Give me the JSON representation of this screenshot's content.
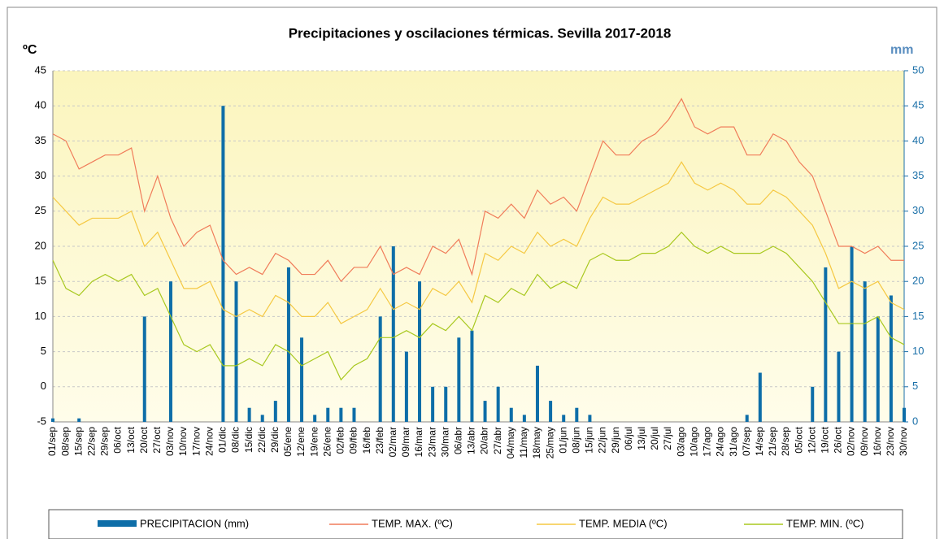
{
  "chart_data": {
    "type": "bar_line",
    "title": "Precipitaciones y oscilaciones térmicas. Sevilla 2017-2018",
    "y_label": "ºC",
    "y2_label": "mm",
    "categories": [
      "01/sep",
      "08/sep",
      "15/sep",
      "22/sep",
      "29/sep",
      "06/oct",
      "13/oct",
      "20/oct",
      "27/oct",
      "03/nov",
      "10/nov",
      "17/nov",
      "24/nov",
      "01/dic",
      "08/dic",
      "15/dic",
      "22/dic",
      "29/dic",
      "05/ene",
      "12/ene",
      "19/ene",
      "26/ene",
      "02/feb",
      "09/feb",
      "16/feb",
      "23/feb",
      "02/mar",
      "09/mar",
      "16/mar",
      "23/mar",
      "30/mar",
      "06/abr",
      "13/abr",
      "20/abr",
      "27/abr",
      "04/may",
      "11/may",
      "18/may",
      "25/may",
      "01/jun",
      "08/jun",
      "15/jun",
      "22/jun",
      "29/jun",
      "06/jul",
      "13/jul",
      "20/jul",
      "27/jul",
      "03/ago",
      "10/ago",
      "17/ago",
      "24/ago",
      "31/ago",
      "07/sep",
      "14/sep",
      "21/sep",
      "28/sep",
      "05/oct",
      "12/oct",
      "19/oct",
      "26/oct",
      "02/nov",
      "09/nov",
      "16/nov",
      "23/nov",
      "30/nov"
    ],
    "series": [
      {
        "name": "PRECIPITACION (mm)",
        "kind": "bar",
        "axis": "y2",
        "color": "#0e6ea8",
        "values": [
          0.5,
          0,
          0.5,
          0,
          0,
          0,
          0,
          15,
          0,
          20,
          0,
          0,
          0,
          45,
          20,
          2,
          1,
          3,
          22,
          12,
          1,
          2,
          2,
          2,
          0,
          15,
          25,
          10,
          20,
          5,
          5,
          12,
          13,
          3,
          5,
          2,
          1,
          8,
          3,
          1,
          2,
          1,
          0,
          0,
          0,
          0,
          0,
          0,
          0,
          0,
          0,
          0,
          0,
          1,
          7,
          0,
          0,
          0,
          5,
          22,
          10,
          25,
          20,
          15,
          18,
          2
        ]
      },
      {
        "name": "TEMP. MAX. (ºC)",
        "kind": "line",
        "color": "#f07c5a",
        "values": [
          36,
          35,
          31,
          32,
          33,
          33,
          34,
          25,
          30,
          24,
          20,
          22,
          23,
          18,
          16,
          17,
          16,
          19,
          18,
          16,
          16,
          18,
          15,
          17,
          17,
          20,
          16,
          17,
          16,
          20,
          19,
          21,
          16,
          25,
          24,
          26,
          24,
          28,
          26,
          27,
          25,
          30,
          35,
          33,
          33,
          35,
          36,
          38,
          41,
          37,
          36,
          37,
          37,
          33,
          33,
          36,
          35,
          32,
          30,
          25,
          20,
          20,
          19,
          20,
          18,
          18
        ]
      },
      {
        "name": "TEMP. MEDIA (ºC)",
        "kind": "line",
        "color": "#f5c842",
        "values": [
          27,
          25,
          23,
          24,
          24,
          24,
          25,
          20,
          22,
          18,
          14,
          14,
          15,
          11,
          10,
          11,
          10,
          13,
          12,
          10,
          10,
          12,
          9,
          10,
          11,
          14,
          11,
          12,
          11,
          14,
          13,
          15,
          12,
          19,
          18,
          20,
          19,
          22,
          20,
          21,
          20,
          24,
          27,
          26,
          26,
          27,
          28,
          29,
          32,
          29,
          28,
          29,
          28,
          26,
          26,
          28,
          27,
          25,
          23,
          19,
          14,
          15,
          14,
          15,
          12,
          11
        ]
      },
      {
        "name": "TEMP. MIN. (ºC)",
        "kind": "line",
        "color": "#a8c81e",
        "values": [
          18,
          14,
          13,
          15,
          16,
          15,
          16,
          13,
          14,
          10,
          6,
          5,
          6,
          3,
          3,
          4,
          3,
          6,
          5,
          3,
          4,
          5,
          1,
          3,
          4,
          7,
          7,
          8,
          7,
          9,
          8,
          10,
          8,
          13,
          12,
          14,
          13,
          16,
          14,
          15,
          14,
          18,
          19,
          18,
          18,
          19,
          19,
          20,
          22,
          20,
          19,
          20,
          19,
          19,
          19,
          20,
          19,
          17,
          15,
          12,
          9,
          9,
          9,
          10,
          7,
          6
        ]
      }
    ],
    "ylim": [
      -5,
      45
    ],
    "yticks": [
      -5,
      0,
      5,
      10,
      15,
      20,
      25,
      30,
      35,
      40,
      45
    ],
    "y2lim": [
      0,
      50
    ],
    "y2ticks": [
      0,
      5,
      10,
      15,
      20,
      25,
      30,
      35,
      40,
      45,
      50
    ],
    "grid": true
  }
}
